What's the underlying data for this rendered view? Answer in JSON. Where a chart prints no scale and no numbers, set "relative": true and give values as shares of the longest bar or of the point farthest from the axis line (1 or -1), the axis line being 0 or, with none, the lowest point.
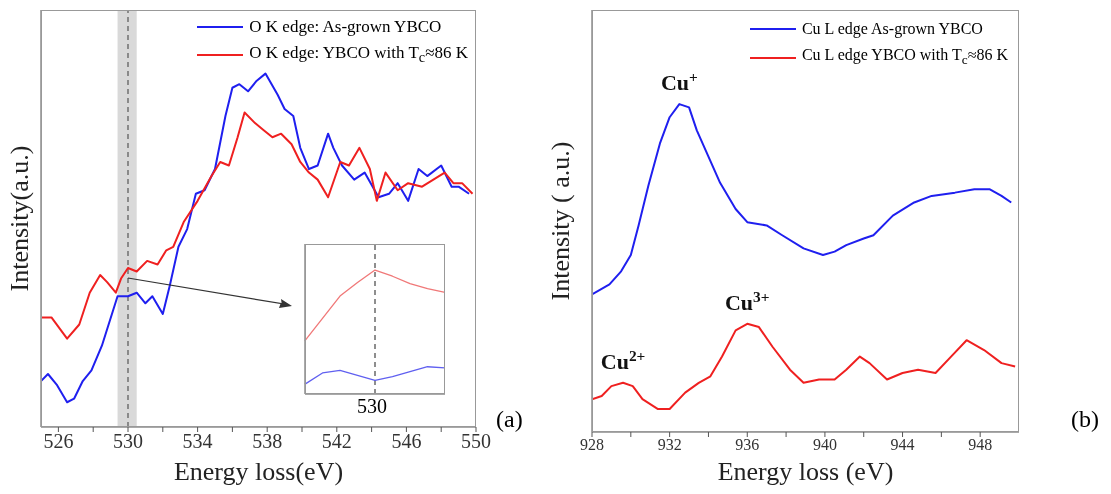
{
  "chart_data": [
    {
      "type": "line",
      "relative": true,
      "xlabel": "Energy loss(eV)",
      "ylabel": "Intensity(a.u.)",
      "xlim": [
        525,
        550
      ],
      "xticks": [
        526,
        {
          "value": 528,
          "label": null
        },
        530,
        {
          "value": 532,
          "label": null
        },
        534,
        {
          "value": 536,
          "label": null
        },
        538,
        {
          "value": 540,
          "label": null
        },
        542,
        {
          "value": 544,
          "label": null
        },
        546,
        {
          "value": 548,
          "label": null
        },
        550
      ],
      "tick_labels": "x",
      "legend": "top right",
      "bands": [
        {
          "axis": "x",
          "from": 529.4,
          "to": 530.5,
          "color": "#d9d9d9"
        }
      ],
      "ref_lines": [
        {
          "axis": "x",
          "value": 530,
          "color": "#555555",
          "line_style": "dashed"
        }
      ],
      "annotations": [
        "(a)"
      ],
      "series": [
        {
          "name": "O K edge: As-grown YBCO",
          "color": "#1f1fef",
          "x": [
            525.0,
            525.4,
            525.9,
            526.5,
            526.9,
            527.4,
            527.9,
            528.5,
            529.4,
            530.0,
            530.5,
            531.0,
            531.4,
            532.0,
            532.4,
            532.9,
            533.4,
            533.9,
            534.4,
            535.0,
            535.6,
            536.0,
            536.4,
            536.9,
            537.4,
            537.9,
            538.6,
            539.0,
            539.5,
            539.9,
            540.4,
            540.9,
            541.5,
            541.8,
            542.3,
            543.0,
            543.6,
            544.4,
            545.0,
            545.5,
            546.1,
            546.7,
            547.2,
            548.0,
            548.6,
            549.0,
            549.6
          ],
          "values": [
            0.13,
            0.15,
            0.12,
            0.07,
            0.08,
            0.13,
            0.16,
            0.23,
            0.37,
            0.37,
            0.38,
            0.35,
            0.37,
            0.32,
            0.4,
            0.51,
            0.56,
            0.66,
            0.67,
            0.73,
            0.88,
            0.96,
            0.97,
            0.95,
            0.98,
            1.0,
            0.94,
            0.9,
            0.88,
            0.79,
            0.73,
            0.74,
            0.83,
            0.79,
            0.74,
            0.7,
            0.72,
            0.65,
            0.66,
            0.69,
            0.64,
            0.73,
            0.71,
            0.74,
            0.68,
            0.68,
            0.66
          ]
        },
        {
          "name": "O K edge: YBCO with T$_{c}$≈86 K",
          "color": "#ef2020",
          "x": [
            525.0,
            525.6,
            526.5,
            527.2,
            527.8,
            528.4,
            528.8,
            529.3,
            529.6,
            530.0,
            530.5,
            531.1,
            531.7,
            532.2,
            532.6,
            533.2,
            534.0,
            534.8,
            535.3,
            535.8,
            536.3,
            536.7,
            537.3,
            537.8,
            538.3,
            538.8,
            539.4,
            539.9,
            540.4,
            540.9,
            541.5,
            542.2,
            542.7,
            543.3,
            543.9,
            544.3,
            544.8,
            545.5,
            546.1,
            546.9,
            548.2,
            548.7,
            549.2,
            549.8
          ],
          "values": [
            0.31,
            0.31,
            0.25,
            0.29,
            0.38,
            0.43,
            0.41,
            0.38,
            0.42,
            0.45,
            0.44,
            0.47,
            0.46,
            0.5,
            0.51,
            0.58,
            0.64,
            0.71,
            0.75,
            0.74,
            0.82,
            0.89,
            0.86,
            0.84,
            0.82,
            0.83,
            0.8,
            0.75,
            0.72,
            0.7,
            0.65,
            0.75,
            0.74,
            0.79,
            0.73,
            0.64,
            0.72,
            0.67,
            0.69,
            0.68,
            0.72,
            0.69,
            0.69,
            0.66
          ]
        }
      ]
    },
    {
      "type": "line",
      "relative": true,
      "categories": [
        null,
        null,
        null,
        null,
        null,
        null,
        null,
        null,
        null
      ],
      "tick_labels": false,
      "annotations": [
        "530"
      ],
      "series": [
        {
          "color": "#f07878",
          "values": [
            0.43,
            0.61,
            0.79,
            0.9,
            1.0,
            0.95,
            0.89,
            0.85,
            0.82
          ]
        },
        {
          "color": "#6060f0",
          "values": [
            0.08,
            0.17,
            0.19,
            0.15,
            0.11,
            0.14,
            0.18,
            0.22,
            0.21
          ]
        }
      ]
    },
    {
      "type": "line",
      "relative": true,
      "xlabel": "Energy loss (eV)",
      "ylabel": "Intensity ( a.u.)",
      "xlim": [
        928,
        950
      ],
      "xticks": [
        928,
        {
          "value": 930,
          "label": null
        },
        932,
        {
          "value": 934,
          "label": null
        },
        936,
        {
          "value": 938,
          "label": null
        },
        940,
        {
          "value": 942,
          "label": null
        },
        944,
        {
          "value": 946,
          "label": null
        },
        948
      ],
      "tick_labels": "x",
      "legend": "top right",
      "annotations": [
        "(b)",
        {
          "text": "Cu$^{+}$",
          "x": 932.5,
          "y": 1.0
        },
        {
          "text": "Cu$^{3+}$",
          "x": 936.0,
          "y": 0.33
        },
        {
          "text": "Cu$^{2+}$",
          "x": 929.6,
          "y": 0.15
        }
      ],
      "series": [
        {
          "name": "Cu L edge As-grown YBCO",
          "color": "#1f1fef",
          "x": [
            928.0,
            928.9,
            929.5,
            930.0,
            930.4,
            930.9,
            931.5,
            932.0,
            932.5,
            933.0,
            933.4,
            934.0,
            934.6,
            935.4,
            936.0,
            937.0,
            937.8,
            938.9,
            939.9,
            940.5,
            941.1,
            942.0,
            942.5,
            943.5,
            944.6,
            945.5,
            946.7,
            947.7,
            948.5,
            949.1,
            949.6
          ],
          "values": [
            0.42,
            0.45,
            0.49,
            0.54,
            0.63,
            0.75,
            0.88,
            0.96,
            1.0,
            0.99,
            0.92,
            0.84,
            0.76,
            0.68,
            0.64,
            0.63,
            0.6,
            0.56,
            0.54,
            0.55,
            0.57,
            0.59,
            0.6,
            0.66,
            0.7,
            0.72,
            0.73,
            0.74,
            0.74,
            0.72,
            0.7
          ]
        },
        {
          "name": "Cu L edge YBCO with T$_{c}$≈86 K",
          "color": "#ef2020",
          "x": [
            928.0,
            928.5,
            929.0,
            929.6,
            930.1,
            930.6,
            931.4,
            932.0,
            932.8,
            933.5,
            934.1,
            934.7,
            935.4,
            936.0,
            936.6,
            937.3,
            938.2,
            938.9,
            939.7,
            940.5,
            941.1,
            941.8,
            942.3,
            943.2,
            944.0,
            944.8,
            945.7,
            946.5,
            947.3,
            948.2,
            949.1,
            949.8
          ],
          "values": [
            0.1,
            0.11,
            0.14,
            0.15,
            0.14,
            0.1,
            0.07,
            0.07,
            0.12,
            0.15,
            0.17,
            0.23,
            0.31,
            0.33,
            0.32,
            0.26,
            0.19,
            0.15,
            0.16,
            0.16,
            0.19,
            0.23,
            0.21,
            0.16,
            0.18,
            0.19,
            0.18,
            0.23,
            0.28,
            0.25,
            0.21,
            0.2
          ]
        }
      ]
    }
  ]
}
